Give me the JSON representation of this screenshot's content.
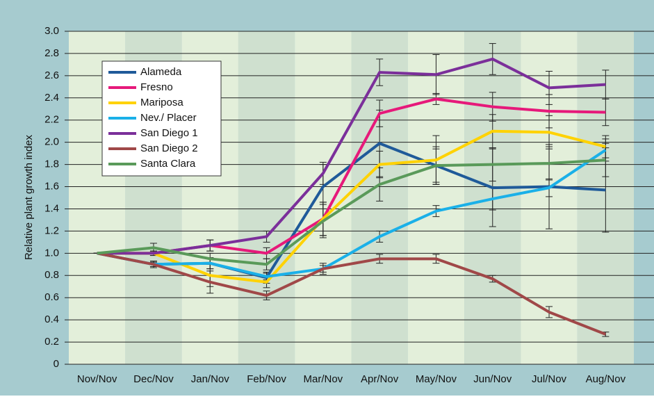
{
  "chart_data": {
    "type": "line",
    "y_label": "Relative plant growth index",
    "categories": [
      "Nov/Nov",
      "Dec/Nov",
      "Jan/Nov",
      "Feb/Nov",
      "Mar/Nov",
      "Apr/Nov",
      "May/Nov",
      "Jun/Nov",
      "Jul/Nov",
      "Aug/Nov"
    ],
    "ylim": [
      0,
      3
    ],
    "yticks": [
      0,
      0.2,
      0.4,
      0.6,
      0.8,
      {
        "value": 1,
        "label": "1.0"
      },
      1.2,
      1.4,
      1.6,
      1.8,
      {
        "value": 2,
        "label": "2.0"
      },
      2.2,
      2.4,
      2.6,
      2.8,
      {
        "value": 3,
        "label": "3.0"
      }
    ],
    "grid": true,
    "series": [
      {
        "name": "Alameda",
        "color": "#1f5a99",
        "values": [
          1.0,
          0.9,
          0.91,
          0.78,
          1.6,
          1.99,
          1.79,
          1.59,
          1.6,
          1.57
        ],
        "errors": [
          0,
          0.02,
          0.05,
          0.05,
          0.2,
          0.3,
          0.15,
          0.35,
          0.38,
          0.38
        ]
      },
      {
        "name": "Fresno",
        "color": "#e6197a",
        "values": [
          1.0,
          1.0,
          1.07,
          1.0,
          1.31,
          2.26,
          2.39,
          2.32,
          2.28,
          2.27
        ],
        "errors": [
          0,
          0.02,
          0.05,
          0.05,
          0.15,
          0.12,
          0.05,
          0.13,
          0.15,
          0.12
        ]
      },
      {
        "name": "Mariposa",
        "color": "#ffd200",
        "values": [
          1.0,
          1.0,
          0.8,
          0.74,
          1.31,
          1.8,
          1.84,
          2.1,
          2.09,
          1.96
        ],
        "errors": [
          0,
          0.02,
          0.1,
          0.05,
          0.15,
          0.12,
          0.22,
          0.15,
          0.15,
          0.1
        ]
      },
      {
        "name": "Nev./ Placer",
        "color": "#1ab0e8",
        "values": [
          1.0,
          0.9,
          0.91,
          0.79,
          0.86,
          1.15,
          1.38,
          1.49,
          1.59,
          1.93
        ],
        "errors": [
          0,
          0.02,
          0.05,
          0.03,
          0.05,
          0.05,
          0.05,
          0.1,
          0.08,
          0.1
        ]
      },
      {
        "name": "San Diego 1",
        "color": "#7b2f9a",
        "values": [
          1.0,
          1.0,
          1.07,
          1.15,
          1.72,
          2.63,
          2.61,
          2.75,
          2.49,
          2.52
        ],
        "errors": [
          0,
          0.02,
          0.05,
          0.05,
          0.1,
          0.12,
          0.18,
          0.14,
          0.15,
          0.13
        ]
      },
      {
        "name": "San Diego 2",
        "color": "#a04848",
        "values": [
          1.0,
          0.9,
          0.74,
          0.62,
          0.86,
          0.95,
          0.95,
          0.77,
          0.47,
          0.27
        ],
        "errors": [
          0,
          0.03,
          0.1,
          0.04,
          0.03,
          0.04,
          0.04,
          0.03,
          0.05,
          0.02
        ]
      },
      {
        "name": "Santa Clara",
        "color": "#5a9a5a",
        "values": [
          1.0,
          1.05,
          0.95,
          0.9,
          1.29,
          1.62,
          1.79,
          1.8,
          1.81,
          1.84
        ],
        "errors": [
          0,
          0.04,
          0.05,
          0.05,
          0.15,
          0.15,
          0.17,
          0.15,
          0.15,
          0.15
        ]
      }
    ]
  }
}
